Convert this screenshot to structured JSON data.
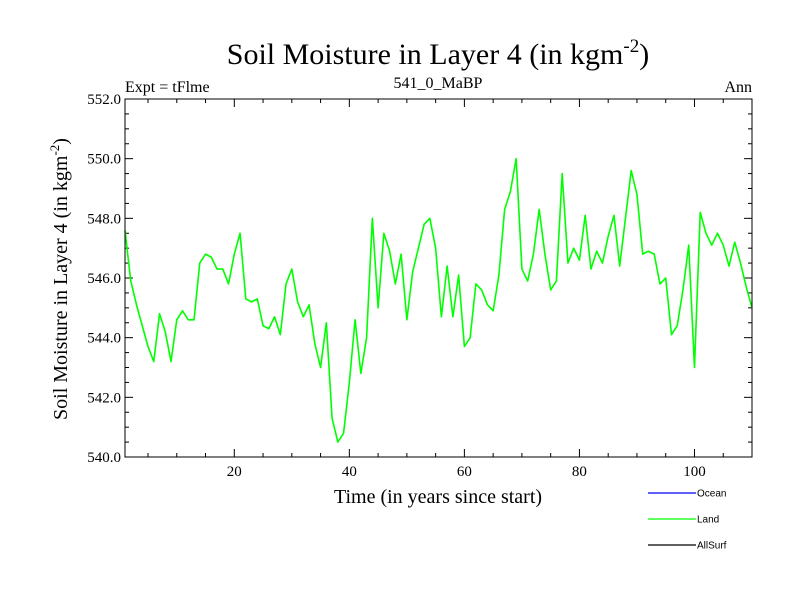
{
  "chart_data": {
    "type": "line",
    "title_main": "Soil Moisture in Layer 4 (in kgm",
    "title_sup": "-2",
    "title_end": ")",
    "subtitle_left": "Expt = tFlme",
    "subtitle_center": "541_0_MaBP",
    "subtitle_right": "Ann",
    "xlabel": "Time (in years since start)",
    "ylabel_main": "Soil Moisture in Layer 4 (in kgm",
    "ylabel_sup": "-2",
    "ylabel_end": ")",
    "xlim": [
      1,
      110
    ],
    "ylim": [
      540,
      552
    ],
    "x_ticks": [
      20,
      40,
      60,
      80,
      100
    ],
    "x_tick_labels": [
      "20",
      "40",
      "60",
      "80",
      "100"
    ],
    "y_ticks": [
      540,
      542,
      544,
      546,
      548,
      550,
      552
    ],
    "y_tick_labels": [
      "540.0",
      "542.0",
      "544.0",
      "546.0",
      "548.0",
      "550.0",
      "552.0"
    ],
    "legend": [
      {
        "name": "Ocean",
        "color": "#0000ff"
      },
      {
        "name": "Land",
        "color": "#00ff00"
      },
      {
        "name": "AllSurf",
        "color": "#000000"
      }
    ],
    "series": [
      {
        "name": "Land",
        "color": "#00ff00",
        "x_start": 1,
        "values": [
          547.6,
          545.9,
          545.1,
          544.4,
          543.7,
          543.2,
          544.8,
          544.2,
          543.2,
          544.6,
          544.9,
          544.6,
          544.6,
          546.5,
          546.8,
          546.7,
          546.3,
          546.3,
          545.8,
          546.8,
          547.5,
          545.3,
          545.2,
          545.3,
          544.4,
          544.3,
          544.7,
          544.1,
          545.8,
          546.3,
          545.2,
          544.7,
          545.1,
          543.8,
          543.0,
          544.5,
          541.3,
          540.5,
          540.8,
          542.5,
          544.6,
          542.8,
          544.0,
          548.0,
          545.0,
          547.5,
          546.9,
          545.8,
          546.8,
          544.6,
          546.2,
          547.0,
          547.8,
          548.0,
          547.0,
          544.7,
          546.4,
          544.7,
          546.1,
          543.7,
          544.0,
          545.8,
          545.6,
          545.1,
          544.9,
          546.1,
          548.3,
          548.9,
          550.0,
          546.3,
          545.9,
          546.8,
          548.3,
          546.8,
          545.6,
          545.9,
          549.5,
          546.5,
          547.0,
          546.6,
          548.1,
          546.3,
          546.9,
          546.5,
          547.4,
          548.1,
          546.4,
          548.0,
          549.6,
          548.8,
          546.8,
          546.9,
          546.8,
          545.8,
          546.0,
          544.1,
          544.4,
          545.6,
          547.1,
          543.0,
          548.2,
          547.5,
          547.1,
          547.5,
          547.1,
          546.4,
          547.2,
          546.5,
          545.7,
          545.0
        ]
      }
    ]
  }
}
